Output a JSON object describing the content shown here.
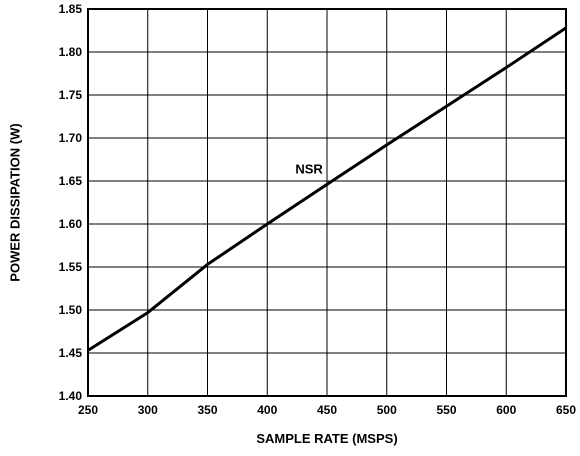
{
  "chart_data": {
    "type": "line",
    "title": "",
    "xlabel": "SAMPLE RATE (MSPS)",
    "ylabel": "POWER DISSIPATION (W)",
    "xlim": [
      250,
      650
    ],
    "ylim": [
      1.4,
      1.85
    ],
    "x_ticks": [
      "250",
      "300",
      "350",
      "400",
      "450",
      "500",
      "550",
      "600",
      "650"
    ],
    "y_ticks": [
      "1.40",
      "1.45",
      "1.50",
      "1.55",
      "1.60",
      "1.65",
      "1.70",
      "1.75",
      "1.80",
      "1.85"
    ],
    "grid": true,
    "series": [
      {
        "name": "NSR",
        "x": [
          250,
          300,
          350,
          400,
          450,
          500,
          550,
          600,
          650
        ],
        "y": [
          1.453,
          1.497,
          1.553,
          1.6,
          1.646,
          1.692,
          1.737,
          1.782,
          1.828
        ]
      }
    ],
    "annotations": [
      {
        "text": "NSR",
        "x": 435,
        "y": 1.66
      }
    ]
  }
}
